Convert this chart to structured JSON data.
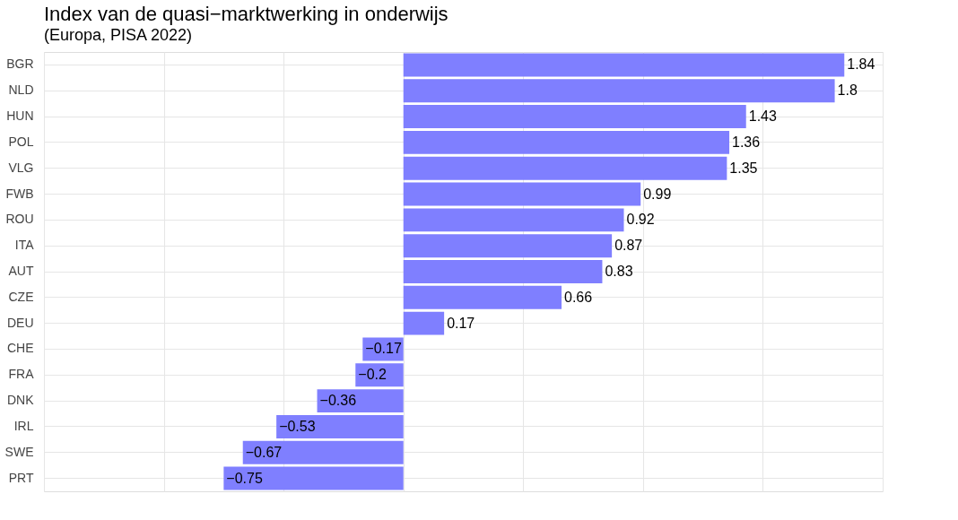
{
  "chart_data": {
    "type": "bar",
    "orientation": "horizontal",
    "title": "Index van de quasi−marktwerking in onderwijs",
    "subtitle": "(Europa, PISA 2022)",
    "categories": [
      "BGR",
      "NLD",
      "HUN",
      "POL",
      "VLG",
      "FWB",
      "ROU",
      "ITA",
      "AUT",
      "CZE",
      "DEU",
      "CHE",
      "FRA",
      "DNK",
      "IRL",
      "SWE",
      "PRT"
    ],
    "values": [
      1.84,
      1.8,
      1.43,
      1.36,
      1.35,
      0.99,
      0.92,
      0.87,
      0.83,
      0.66,
      0.17,
      -0.17,
      -0.2,
      -0.36,
      -0.53,
      -0.67,
      -0.75
    ],
    "color": "#7f7fff",
    "xlim": [
      -1.5,
      2
    ],
    "xticks": [
      {
        "value": -1.5,
        "label": null
      },
      {
        "value": -1,
        "label": null
      },
      {
        "value": -0.5,
        "label": null
      },
      {
        "value": 0,
        "label": null
      },
      {
        "value": 0.5,
        "label": null
      },
      {
        "value": 1,
        "label": null
      },
      {
        "value": 1.5,
        "label": null
      },
      {
        "value": 2,
        "label": null
      }
    ],
    "tick_labels": "y",
    "grid": true,
    "data_labels": true
  }
}
